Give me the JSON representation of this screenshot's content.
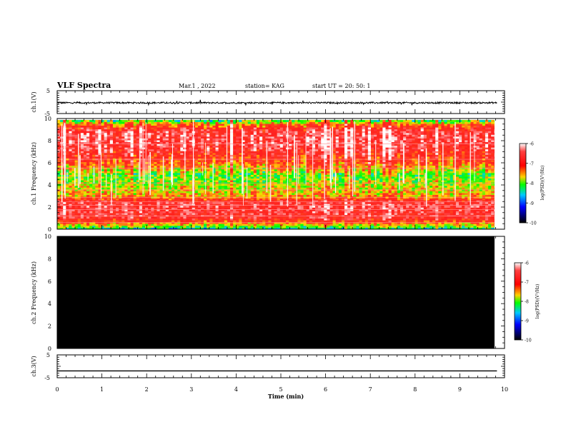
{
  "header": {
    "title": "VLF Spectra",
    "date": "Mar.1 , 2022",
    "station": "station= KAG",
    "start": "start UT =  20: 50: 1"
  },
  "colors": {
    "background": "#ffffff",
    "axis": "#000000",
    "ch2_fill": "#000000",
    "colorbar": [
      "#ffffff",
      "#ff0000",
      "#ffcc00",
      "#00ff00",
      "#00ccff",
      "#0000ff",
      "#000000"
    ]
  },
  "chart_data": [
    {
      "type": "line",
      "id": "ch1_waveform",
      "ylabel": "ch.1(V)",
      "ylim": [
        -5,
        5
      ],
      "yticks": [
        5,
        -5
      ],
      "xlim": [
        0,
        10
      ],
      "mean_level": -0.3,
      "noise_amplitude": 0.7,
      "data_end_min": 9.83
    },
    {
      "type": "heatmap",
      "id": "ch1_spectrogram",
      "ylabel": "ch.1 Frequency (kHz)",
      "ylim": [
        0,
        10
      ],
      "yticks": [
        0,
        2,
        4,
        6,
        8,
        10
      ],
      "xlim": [
        0,
        10
      ],
      "data_end_min": 9.83,
      "colorbar": {
        "label": "log(PSD)(V²/Hz)",
        "ticks": [
          -6,
          -7,
          -8,
          -9,
          -10
        ],
        "range": [
          -10,
          -6
        ]
      },
      "profile_khz": [
        {
          "f": 0.0,
          "level": -8.7
        },
        {
          "f": 0.5,
          "level": -7.6
        },
        {
          "f": 1.0,
          "level": -6.8
        },
        {
          "f": 2.0,
          "level": -6.6
        },
        {
          "f": 2.5,
          "level": -6.7
        },
        {
          "f": 3.0,
          "level": -7.6
        },
        {
          "f": 4.0,
          "level": -7.9
        },
        {
          "f": 5.0,
          "level": -8.2
        },
        {
          "f": 6.0,
          "level": -7.3
        },
        {
          "f": 7.0,
          "level": -6.8
        },
        {
          "f": 8.0,
          "level": -6.5
        },
        {
          "f": 9.0,
          "level": -6.6
        },
        {
          "f": 9.6,
          "level": -7.4
        },
        {
          "f": 10.0,
          "level": -8.4
        }
      ]
    },
    {
      "type": "heatmap",
      "id": "ch2_spectrogram",
      "ylabel": "ch.2 Frequency (kHz)",
      "ylim": [
        0,
        10
      ],
      "yticks": [
        0,
        2,
        4,
        6,
        8,
        10
      ],
      "xlim": [
        0,
        10
      ],
      "data_end_min": 9.83,
      "fill": "saturated black (no signal)",
      "colorbar": {
        "label": "log(PSD)(V²/Hz)",
        "ticks": [
          -6,
          -7,
          -8,
          -9,
          -10
        ],
        "range": [
          -10,
          -6
        ]
      }
    },
    {
      "type": "line",
      "id": "ch3_waveform",
      "ylabel": "ch.3(V)",
      "ylim": [
        -5,
        5
      ],
      "yticks": [
        5,
        -5
      ],
      "xlim": [
        0,
        10
      ],
      "constant_level": -2.0,
      "data_end_min": 9.83
    }
  ],
  "xaxis": {
    "label": "Time (min)",
    "ticks": [
      0,
      1,
      2,
      3,
      4,
      5,
      6,
      7,
      8,
      9,
      10
    ]
  }
}
